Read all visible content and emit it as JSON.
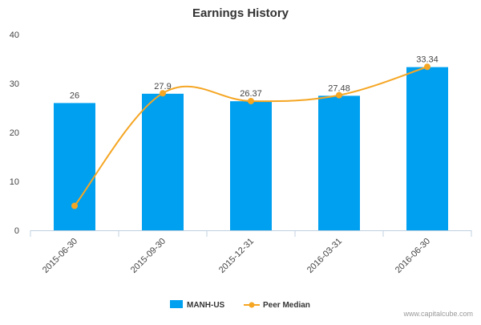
{
  "chart_data": {
    "type": "bar",
    "title": "Earnings History",
    "categories": [
      "2015-06-30",
      "2015-09-30",
      "2015-12-31",
      "2016-03-31",
      "2016-06-30"
    ],
    "series": [
      {
        "name": "MANH-US",
        "type": "bar",
        "color": "#00a0f0",
        "values": [
          26,
          27.9,
          26.37,
          27.48,
          33.34
        ],
        "data_labels": [
          "26",
          "27.9",
          "26.37",
          "27.48",
          "33.34"
        ]
      },
      {
        "name": "Peer Median",
        "type": "line",
        "color": "#f5a623",
        "values": [
          5,
          28,
          26.4,
          27.6,
          33.4
        ]
      }
    ],
    "ylim": [
      0,
      40
    ],
    "yticks": [
      "0",
      "10",
      "20",
      "30",
      "40"
    ],
    "grid": false,
    "legend_position": "bottom-center"
  },
  "credit": "www.capitalcube.com"
}
